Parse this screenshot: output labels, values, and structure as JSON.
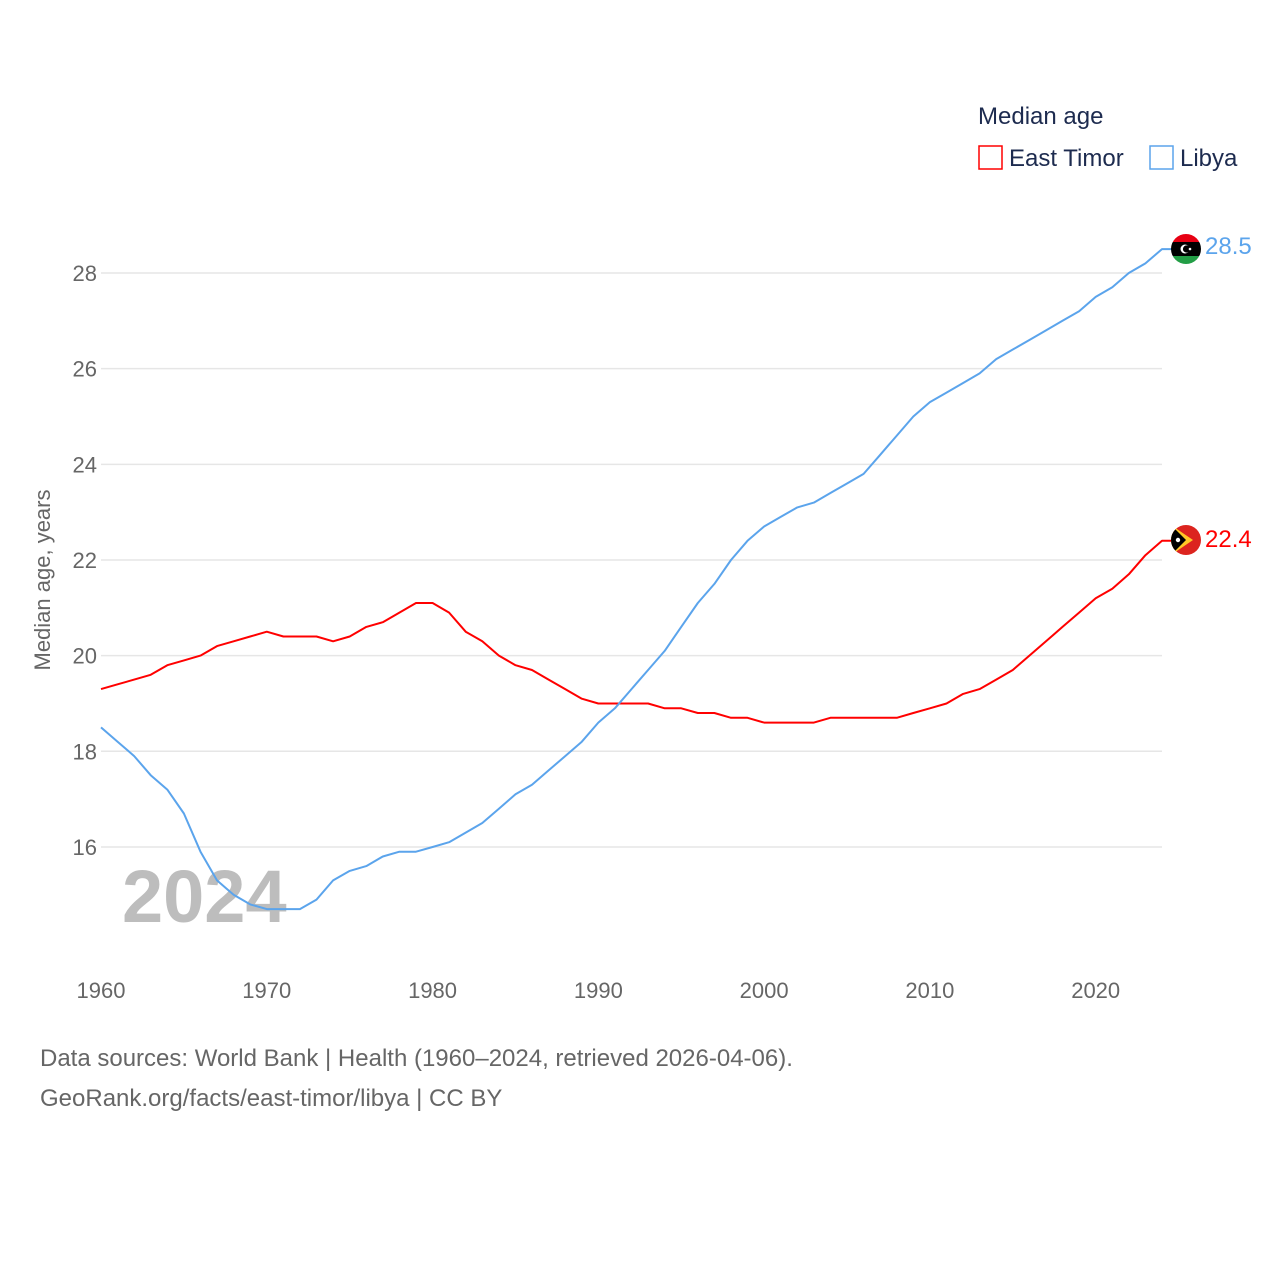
{
  "chart_data": {
    "type": "line",
    "title": "Median age",
    "ylabel": "Median age, years",
    "xlabel": "",
    "xlim": [
      1960,
      2024
    ],
    "ylim": [
      14.2,
      29
    ],
    "grid": true,
    "legend_placement": "top-right",
    "year_watermark": "2024",
    "x_ticks": [
      "1960",
      "1970",
      "1980",
      "1990",
      "2000",
      "2010",
      "2020"
    ],
    "y_ticks": [
      "16",
      "18",
      "20",
      "22",
      "24",
      "26",
      "28"
    ],
    "x": [
      1960,
      1961,
      1962,
      1963,
      1964,
      1965,
      1966,
      1967,
      1968,
      1969,
      1970,
      1971,
      1972,
      1973,
      1974,
      1975,
      1976,
      1977,
      1978,
      1979,
      1980,
      1981,
      1982,
      1983,
      1984,
      1985,
      1986,
      1987,
      1988,
      1989,
      1990,
      1991,
      1992,
      1993,
      1994,
      1995,
      1996,
      1997,
      1998,
      1999,
      2000,
      2001,
      2002,
      2003,
      2004,
      2005,
      2006,
      2007,
      2008,
      2009,
      2010,
      2011,
      2012,
      2013,
      2014,
      2015,
      2016,
      2017,
      2018,
      2019,
      2020,
      2021,
      2022,
      2023,
      2024
    ],
    "series": [
      {
        "name": "East Timor",
        "color": "#ff0000",
        "end_label": "22.4",
        "values": [
          19.3,
          19.4,
          19.5,
          19.6,
          19.8,
          19.9,
          20.0,
          20.2,
          20.3,
          20.4,
          20.5,
          20.4,
          20.4,
          20.4,
          20.3,
          20.4,
          20.6,
          20.7,
          20.9,
          21.1,
          21.1,
          20.9,
          20.5,
          20.3,
          20.0,
          19.8,
          19.7,
          19.5,
          19.3,
          19.1,
          19.0,
          19.0,
          19.0,
          19.0,
          18.9,
          18.9,
          18.8,
          18.8,
          18.7,
          18.7,
          18.6,
          18.6,
          18.6,
          18.6,
          18.7,
          18.7,
          18.7,
          18.7,
          18.7,
          18.8,
          18.9,
          19.0,
          19.2,
          19.3,
          19.5,
          19.7,
          20.0,
          20.3,
          20.6,
          20.9,
          21.2,
          21.4,
          21.7,
          22.1,
          22.4
        ]
      },
      {
        "name": "Libya",
        "color": "#5ba4ec",
        "end_label": "28.5",
        "values": [
          18.5,
          18.2,
          17.9,
          17.5,
          17.2,
          16.7,
          15.9,
          15.3,
          15.0,
          14.8,
          14.7,
          14.7,
          14.7,
          14.9,
          15.3,
          15.5,
          15.6,
          15.8,
          15.9,
          15.9,
          16.0,
          16.1,
          16.3,
          16.5,
          16.8,
          17.1,
          17.3,
          17.6,
          17.9,
          18.2,
          18.6,
          18.9,
          19.3,
          19.7,
          20.1,
          20.6,
          21.1,
          21.5,
          22.0,
          22.4,
          22.7,
          22.9,
          23.1,
          23.2,
          23.4,
          23.6,
          23.8,
          24.2,
          24.6,
          25.0,
          25.3,
          25.5,
          25.7,
          25.9,
          26.2,
          26.4,
          26.6,
          26.8,
          27.0,
          27.2,
          27.5,
          27.7,
          28.0,
          28.2,
          28.5
        ]
      }
    ]
  },
  "footer": {
    "line1": "Data sources: World Bank | Health (1960–2024, retrieved 2026-04-06).",
    "line2": "GeoRank.org/facts/east-timor/libya | CC BY"
  }
}
